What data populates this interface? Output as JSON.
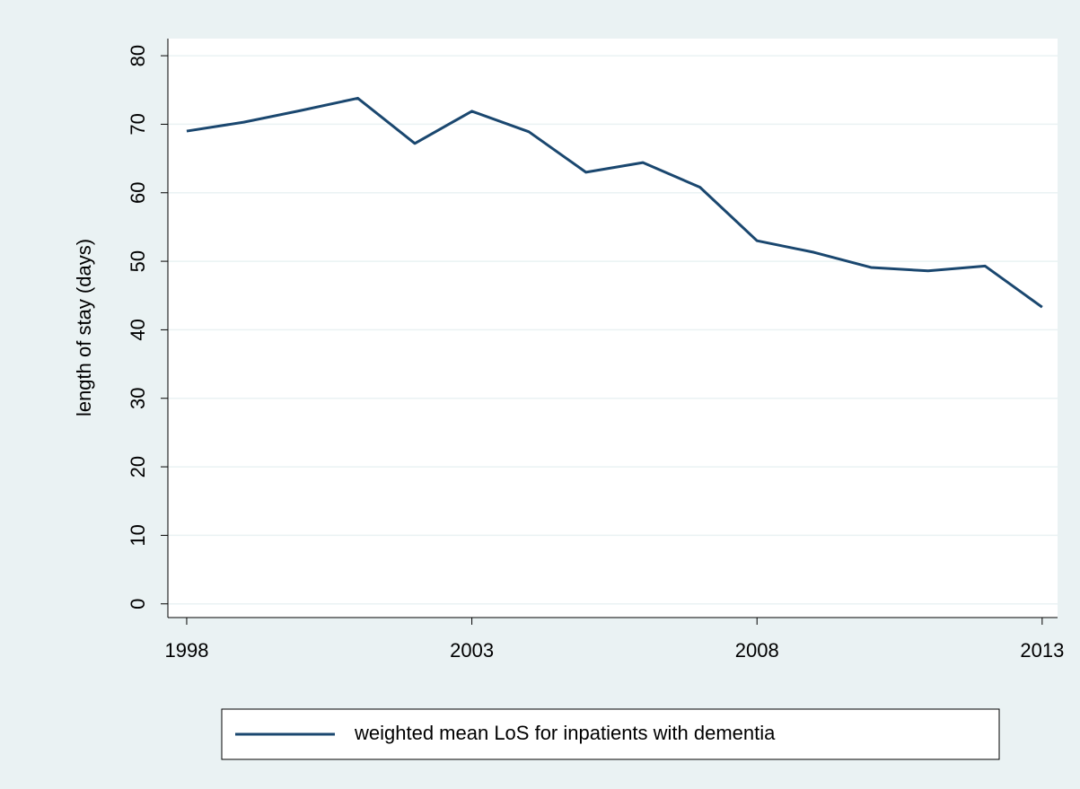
{
  "chart_data": {
    "type": "line",
    "y_label": "length of stay (days)",
    "x": [
      1998,
      1999,
      2000,
      2001,
      2002,
      2003,
      2004,
      2005,
      2006,
      2007,
      2008,
      2009,
      2010,
      2011,
      2012,
      2013
    ],
    "series": [
      {
        "name": "weighted mean LoS for inpatients with dementia",
        "color": "#1a476f",
        "values": [
          69,
          70.3,
          72,
          73.8,
          67.2,
          71.9,
          68.9,
          63,
          64.4,
          60.8,
          53,
          51.3,
          49.1,
          48.6,
          49.3,
          43.3
        ]
      }
    ],
    "xlim": [
      1997.67,
      2013.27
    ],
    "xticks": [
      1998,
      2003,
      2008,
      2013
    ],
    "ylim": [
      -2,
      82.5
    ],
    "yticks": [
      0,
      10,
      20,
      30,
      40,
      50,
      60,
      70,
      80
    ],
    "grid": true,
    "legend": "bottom"
  }
}
